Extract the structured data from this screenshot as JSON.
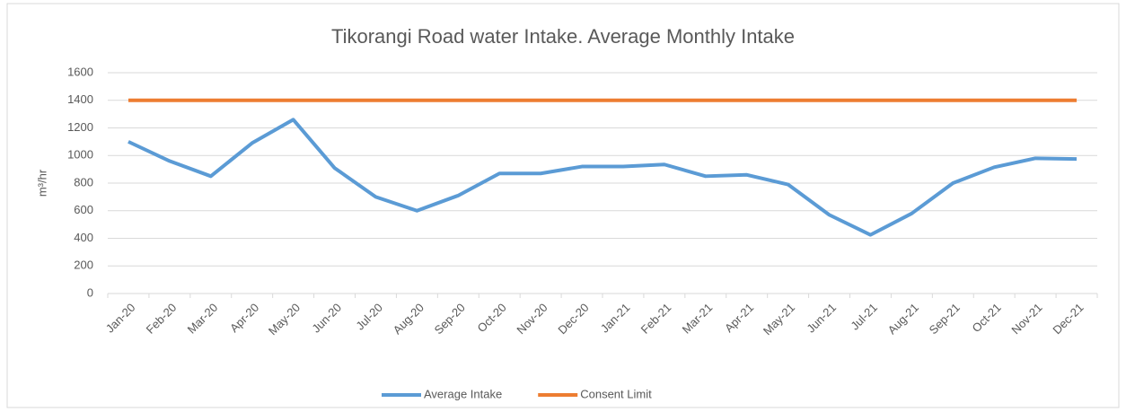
{
  "chart_data": {
    "type": "line",
    "title": "Tikorangi Road water Intake. Average Monthly Intake",
    "y_label": "m³/hr",
    "categories": [
      "Jan-20",
      "Feb-20",
      "Mar-20",
      "Apr-20",
      "May-20",
      "Jun-20",
      "Jul-20",
      "Aug-20",
      "Sep-20",
      "Oct-20",
      "Nov-20",
      "Dec-20",
      "Jan-21",
      "Feb-21",
      "Mar-21",
      "Apr-21",
      "May-21",
      "Jun-21",
      "Jul-21",
      "Aug-21",
      "Sep-21",
      "Oct-21",
      "Nov-21",
      "Dec-21"
    ],
    "series": [
      {
        "name": "Average Intake",
        "color": "#5b9bd5",
        "values": [
          1100,
          960,
          850,
          1090,
          1260,
          910,
          700,
          600,
          710,
          870,
          870,
          920,
          920,
          935,
          850,
          860,
          790,
          570,
          425,
          580,
          800,
          915,
          980,
          975
        ]
      },
      {
        "name": "Consent Limit",
        "color": "#ed7d31",
        "values": [
          1400,
          1400,
          1400,
          1400,
          1400,
          1400,
          1400,
          1400,
          1400,
          1400,
          1400,
          1400,
          1400,
          1400,
          1400,
          1400,
          1400,
          1400,
          1400,
          1400,
          1400,
          1400,
          1400,
          1400
        ]
      }
    ],
    "ylim": [
      0,
      1600
    ],
    "yticks": [
      0,
      200,
      400,
      600,
      800,
      1000,
      1200,
      1400,
      1600
    ],
    "grid": true,
    "legend": "bottom"
  }
}
